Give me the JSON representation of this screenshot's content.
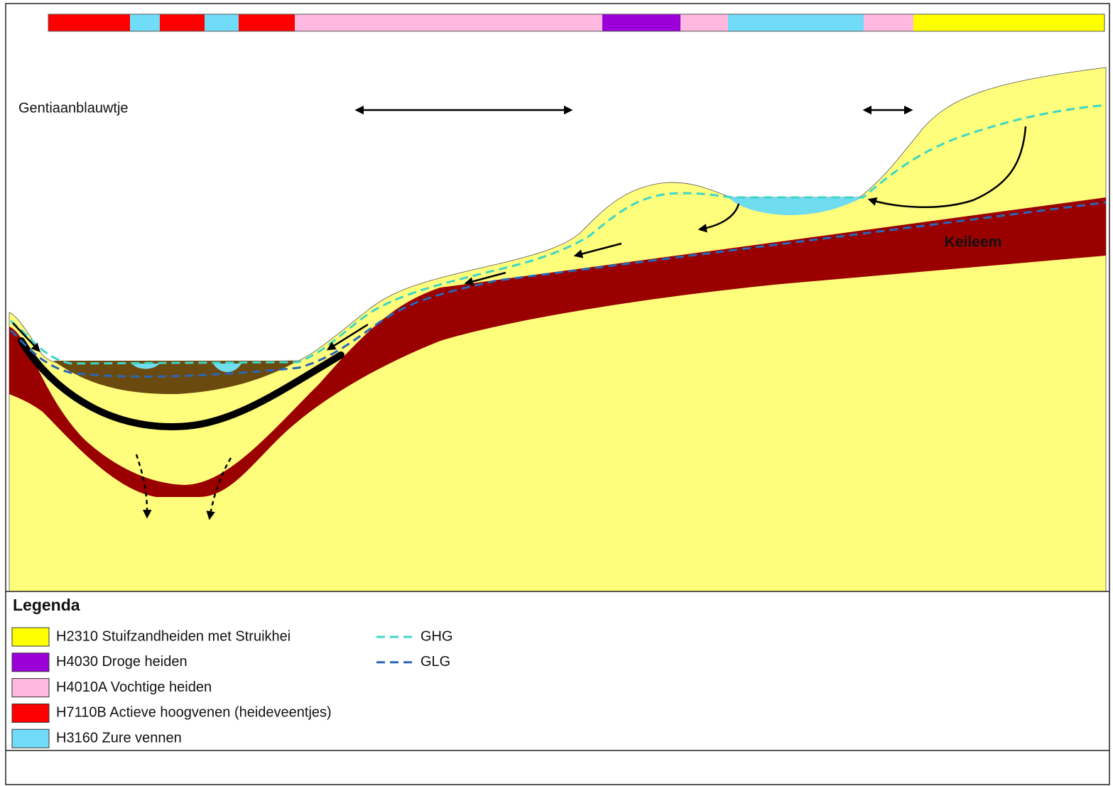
{
  "labels": {
    "species": "Gentiaanblauwtje",
    "layer": "Keileem"
  },
  "legend": {
    "title": "Legenda",
    "habitats": [
      {
        "label": "H2310 Stuifzandheiden met Struikhei",
        "color": "#ffff00"
      },
      {
        "label": "H4030 Droge heiden",
        "color": "#9b00d9"
      },
      {
        "label": "H4010A Vochtige heiden",
        "color": "#ffb8e0"
      },
      {
        "label": "H7110B Actieve hoogvenen (heideveentjes)",
        "color": "#ff0000"
      },
      {
        "label": "H3160 Zure vennen",
        "color": "#70dcf8"
      }
    ],
    "lines": [
      {
        "label": "GHG",
        "color": "#3dd6c8"
      },
      {
        "label": "GLG",
        "color": "#2a66b8"
      }
    ]
  }
}
